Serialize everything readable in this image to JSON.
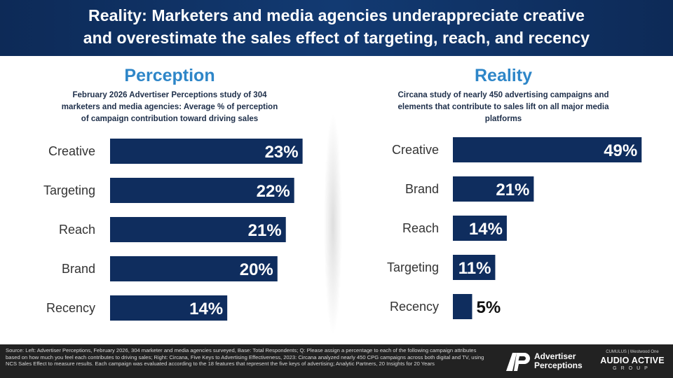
{
  "header": {
    "title_line1": "Reality: Marketers and media agencies underappreciate creative",
    "title_line2": "and overestimate the sales effect of targeting, reach, and recency"
  },
  "perception": {
    "title": "Perception",
    "subtitle_lines": [
      "February 2026 Advertiser Perceptions study of 304",
      "marketers and media agencies: Average % of perception",
      "of campaign contribution toward driving sales"
    ]
  },
  "reality": {
    "title": "Reality",
    "subtitle_lines": [
      "Circana study of nearly 450 advertising campaigns and",
      "elements that contribute to sales lift on all major media",
      "platforms"
    ]
  },
  "chart_data": [
    {
      "type": "bar",
      "orientation": "horizontal",
      "title": "Perception",
      "categories": [
        "Creative",
        "Targeting",
        "Reach",
        "Brand",
        "Recency"
      ],
      "values": [
        23,
        22,
        21,
        20,
        14
      ],
      "value_labels": [
        "23%",
        "22%",
        "21%",
        "20%",
        "14%"
      ],
      "unit": "%",
      "xlim": [
        0,
        23.2
      ],
      "bar_color": "#0f2d5e",
      "label_position": "inside-end"
    },
    {
      "type": "bar",
      "orientation": "horizontal",
      "title": "Reality",
      "categories": [
        "Creative",
        "Brand",
        "Reach",
        "Targeting",
        "Recency"
      ],
      "values": [
        49,
        21,
        14,
        11,
        5
      ],
      "value_labels": [
        "49%",
        "21%",
        "14%",
        "11%",
        "5%"
      ],
      "unit": "%",
      "xlim": [
        0,
        49.5
      ],
      "bar_color": "#0f2d5e",
      "label_position": "inside-end"
    }
  ],
  "footer": {
    "source_text": "Source: Left: Advertiser Perceptions, February 2026, 304 marketer and media agencies surveyed, Base: Total Respondents; Q: Please assign a percentage to each of the following campaign attributes based on how much you feel each contributes to driving sales; Right: Circana, Five Keys to Advertising Effectiveness, 2023: Circana analyzed nearly 450 CPG campaigns across both digital and TV, using NCS Sales Effect to measure results. Each campaign was evaluated according to the 18 features that represent the five keys of advertising; Analytic Partners, 20 Insights for 20 Years",
    "logo_ap_line1": "Advertiser",
    "logo_ap_line2": "Perceptions",
    "logo_aag_top": "CUMULUS | Westwood One",
    "logo_aag_main": "AUDIO ACTIVE",
    "logo_aag_sub": "GROUP"
  },
  "colors": {
    "header_bg": "#0f2d5e",
    "accent": "#2e86c8",
    "bar": "#0f2d5e",
    "footer_bg": "#222222"
  }
}
